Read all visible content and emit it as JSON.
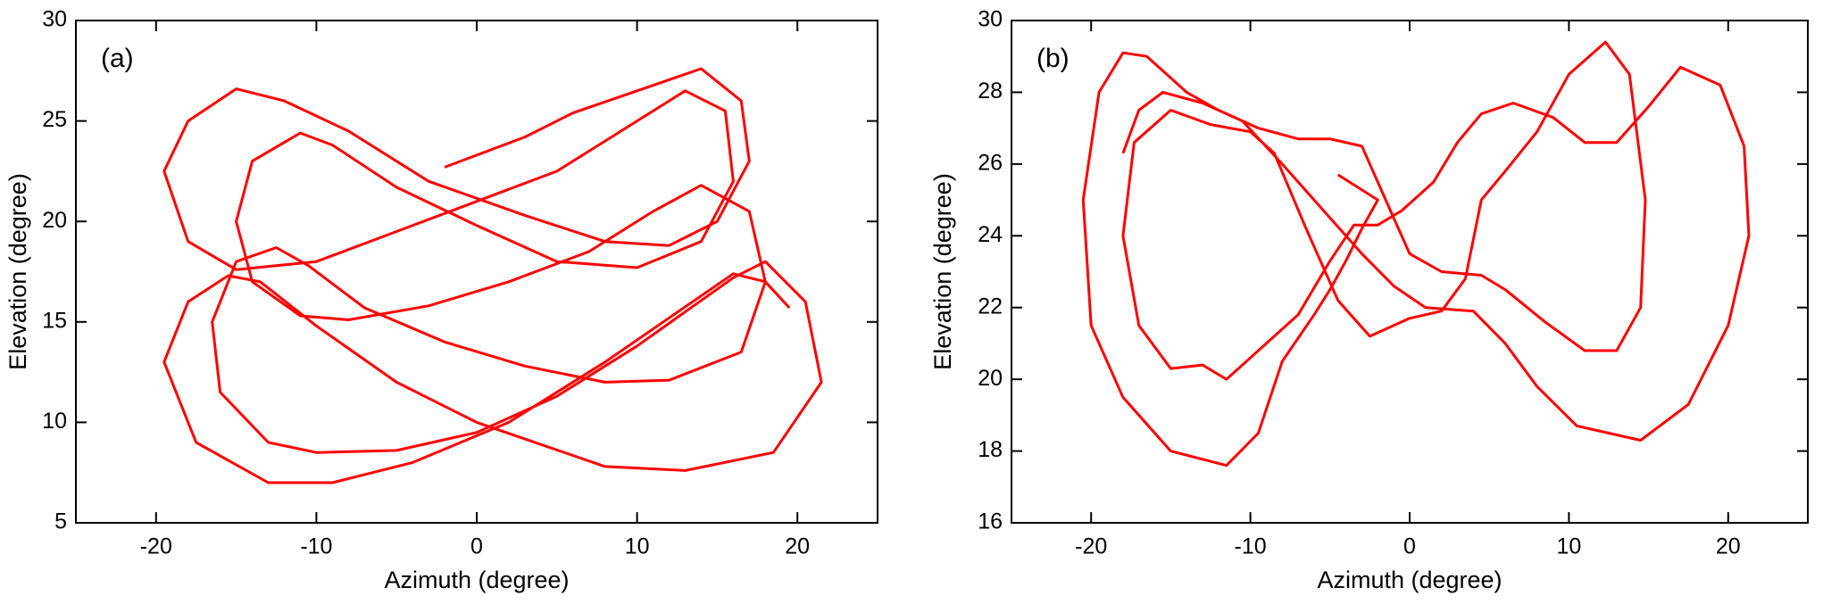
{
  "chart_data": [
    {
      "type": "line",
      "annotation": "(a)",
      "xlabel": "Azimuth (degree)",
      "ylabel": "Elevation (degree)",
      "color": "#ff0000",
      "xlim": [
        -25,
        25
      ],
      "xticks": [
        -20,
        -10,
        0,
        10,
        20
      ],
      "ylim": [
        5,
        30
      ],
      "yticks": [
        5,
        10,
        15,
        20,
        25,
        30
      ],
      "x": [
        -2,
        0,
        3,
        6,
        10,
        14,
        16.5,
        17,
        15,
        12,
        8,
        3,
        -3,
        -8,
        -12,
        -15,
        -18,
        -19.5,
        -18,
        -15,
        -10,
        -5,
        0,
        5,
        10,
        13,
        15.5,
        16,
        14,
        10,
        5,
        0,
        -5,
        -9,
        -11,
        -14,
        -15,
        -14,
        -11,
        -8,
        -3,
        2,
        7,
        11,
        14,
        17,
        18,
        16.5,
        12,
        8,
        3,
        -2,
        -7,
        -10.5,
        -12.5,
        -15,
        -16.5,
        -16,
        -13,
        -10,
        -5,
        0,
        5,
        10,
        16,
        18,
        20.5,
        21.5,
        18.5,
        13,
        8,
        0,
        -5,
        -10,
        -13.5,
        -15.5,
        -18,
        -19.5,
        -17.5,
        -13,
        -9,
        -4,
        2,
        8,
        12,
        16,
        18,
        19.5
      ],
      "values": [
        22.7,
        23.3,
        24.2,
        25.4,
        26.5,
        27.6,
        26,
        23,
        20,
        18.8,
        19,
        20.3,
        22,
        24.5,
        26,
        26.6,
        25,
        22.5,
        19,
        17.6,
        18,
        19.5,
        21,
        22.5,
        25,
        26.5,
        25.5,
        22,
        19,
        17.7,
        18,
        19.8,
        21.7,
        23.8,
        24.4,
        23,
        20,
        17,
        15.3,
        15.1,
        15.8,
        17,
        18.5,
        20.5,
        21.8,
        20.5,
        17,
        13.5,
        12.1,
        12,
        12.8,
        14,
        15.7,
        17.8,
        18.7,
        18,
        15,
        11.5,
        9,
        8.5,
        8.6,
        9.5,
        11.3,
        13.8,
        17.2,
        18,
        16,
        12,
        8.5,
        7.6,
        7.8,
        10,
        12,
        14.8,
        17,
        17.3,
        16,
        13,
        9,
        7,
        7,
        8,
        10,
        13,
        15.2,
        17.4,
        17,
        15.7
      ]
    },
    {
      "type": "line",
      "annotation": "(b)",
      "xlabel": "Azimuth (degree)",
      "ylabel": "Elevation (degree)",
      "color": "#ff0000",
      "xlim": [
        -25,
        25
      ],
      "xticks": [
        -20,
        -10,
        0,
        10,
        20
      ],
      "ylim": [
        16,
        30
      ],
      "yticks": [
        16,
        18,
        20,
        22,
        24,
        26,
        28,
        30
      ],
      "x": [
        -18,
        -17,
        -15.5,
        -13,
        -10.5,
        -8,
        -5,
        -3,
        -1,
        1,
        4,
        6,
        8,
        10.5,
        14.5,
        17.5,
        20,
        21.3,
        21,
        19.5,
        17,
        15,
        13,
        11,
        9,
        6.5,
        4.5,
        3,
        1.5,
        -0.5,
        -2,
        -3.5,
        -5,
        -7,
        -9.5,
        -11.5,
        -13,
        -15,
        -17,
        -18,
        -17.3,
        -15,
        -12.5,
        -10,
        -8.5,
        -6.5,
        -4.5,
        -2.5,
        0,
        2,
        3.5,
        4.5,
        6,
        8,
        10,
        12.3,
        13.8,
        14.8,
        14.5,
        13,
        11,
        8.5,
        6,
        4.5,
        2,
        0,
        -1.5,
        -3,
        -5,
        -7,
        -9.5,
        -12,
        -14,
        -16.5,
        -18,
        -19.5,
        -20.5,
        -20,
        -18,
        -15,
        -11.5,
        -9.5,
        -8,
        -6,
        -5,
        -4,
        -3,
        -2,
        -4.5
      ],
      "values": [
        26.3,
        27.5,
        28,
        27.7,
        27.2,
        26,
        24.5,
        23.5,
        22.6,
        22,
        21.9,
        21,
        19.8,
        18.7,
        18.3,
        19.3,
        21.5,
        24,
        26.5,
        28.2,
        28.7,
        27.6,
        26.6,
        26.6,
        27.3,
        27.7,
        27.4,
        26.6,
        25.5,
        24.7,
        24.3,
        24.3,
        23.3,
        21.8,
        20.8,
        20,
        20.4,
        20.3,
        21.5,
        24,
        26.6,
        27.5,
        27.1,
        26.9,
        26.3,
        24.2,
        22.2,
        21.2,
        21.7,
        21.9,
        22.8,
        25,
        25.8,
        26.9,
        28.5,
        29.4,
        28.5,
        25,
        22,
        20.8,
        20.8,
        21.6,
        22.5,
        22.9,
        23,
        23.5,
        25,
        26.5,
        26.7,
        26.7,
        27,
        27.5,
        28,
        29,
        29.1,
        28,
        25,
        21.5,
        19.5,
        18,
        17.6,
        18.5,
        20.5,
        21.8,
        22.5,
        23.3,
        24.2,
        25,
        25.7
      ]
    }
  ]
}
